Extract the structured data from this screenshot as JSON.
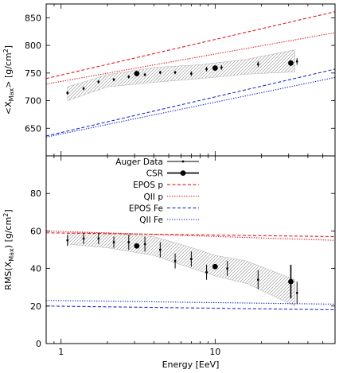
{
  "chart_data": [
    {
      "type": "scatter",
      "panel": "top",
      "title": "",
      "xlabel": "",
      "ylabel": "<X_Max> [g/cm^2]",
      "ylabel_main": "<X",
      "ylabel_sub": "Max",
      "ylabel_rest": "> [g/cm",
      "ylabel_sup": "2",
      "ylabel_end": "]",
      "xscale": "log",
      "xlim": [
        0.8,
        60
      ],
      "ylim": [
        600,
        875
      ],
      "yticks": [
        650,
        700,
        750,
        800,
        850
      ],
      "band": {
        "x": [
          1.1,
          2.0,
          4.0,
          8.0,
          16.0,
          33.0
        ],
        "lower": [
          700,
          725,
          733,
          740,
          748,
          752
        ],
        "upper": [
          725,
          747,
          760,
          765,
          775,
          792
        ]
      },
      "series": [
        {
          "name": "Auger Data",
          "style": "small-points",
          "color": "#000000",
          "points": [
            {
              "x": 1.1,
              "y": 714,
              "yerr": 3
            },
            {
              "x": 1.4,
              "y": 722,
              "yerr": 3
            },
            {
              "x": 1.75,
              "y": 734,
              "yerr": 3
            },
            {
              "x": 2.2,
              "y": 738,
              "yerr": 3
            },
            {
              "x": 2.75,
              "y": 743,
              "yerr": 3
            },
            {
              "x": 3.5,
              "y": 747,
              "yerr": 3
            },
            {
              "x": 4.4,
              "y": 751,
              "yerr": 3
            },
            {
              "x": 5.5,
              "y": 751,
              "yerr": 3
            },
            {
              "x": 7.0,
              "y": 749,
              "yerr": 4
            },
            {
              "x": 8.8,
              "y": 757,
              "yerr": 4
            },
            {
              "x": 11.0,
              "y": 760,
              "yerr": 4
            },
            {
              "x": 19.0,
              "y": 766,
              "yerr": 5
            },
            {
              "x": 34.0,
              "y": 771,
              "yerr": 6
            }
          ]
        },
        {
          "name": "CSR",
          "style": "large-points",
          "color": "#000000",
          "points": [
            {
              "x": 3.1,
              "y": 749,
              "yerr": 2
            },
            {
              "x": 10.0,
              "y": 759,
              "yerr": 3
            },
            {
              "x": 31.0,
              "y": 768,
              "yerr": 5
            }
          ]
        },
        {
          "name": "EPOS p",
          "style": "dashed",
          "color": "#e8191a",
          "x": [
            0.8,
            60
          ],
          "y": [
            740,
            861
          ]
        },
        {
          "name": "QII p",
          "style": "dotted",
          "color": "#e8191a",
          "x": [
            0.8,
            60
          ],
          "y": [
            730,
            823
          ]
        },
        {
          "name": "EPOS Fe",
          "style": "dashed",
          "color": "#1a2ad6",
          "x": [
            0.8,
            60
          ],
          "y": [
            636,
            757
          ]
        },
        {
          "name": "QII Fe",
          "style": "dotted",
          "color": "#1a2ad6",
          "x": [
            0.8,
            60
          ],
          "y": [
            634,
            742
          ]
        }
      ]
    },
    {
      "type": "scatter",
      "panel": "bottom",
      "title": "",
      "xlabel": "Energy [EeV]",
      "ylabel": "RMS(X_Max) [g/cm^2]",
      "ylabel_main": "RMS(X",
      "ylabel_sub": "Max",
      "ylabel_rest": ") [g/cm",
      "ylabel_sup": "2",
      "ylabel_end": "]",
      "xscale": "log",
      "xlim": [
        0.8,
        60
      ],
      "xticks": [
        1,
        10
      ],
      "xtick_labels": [
        "1",
        "10"
      ],
      "ylim": [
        0,
        100
      ],
      "yticks": [
        0,
        20,
        40,
        60,
        80
      ],
      "band": {
        "x": [
          1.1,
          2.0,
          4.0,
          6.5,
          10.0,
          16.0,
          33.0
        ],
        "lower": [
          53,
          51,
          47,
          41,
          36,
          32,
          20
        ],
        "upper": [
          59,
          59,
          57,
          52,
          47,
          44,
          34
        ]
      },
      "series": [
        {
          "name": "Auger Data",
          "style": "small-points",
          "color": "#000000",
          "points": [
            {
              "x": 1.1,
              "y": 55,
              "yerr": 3
            },
            {
              "x": 1.4,
              "y": 56,
              "yerr": 3
            },
            {
              "x": 1.75,
              "y": 56,
              "yerr": 3
            },
            {
              "x": 2.2,
              "y": 54,
              "yerr": 3
            },
            {
              "x": 2.75,
              "y": 54,
              "yerr": 4
            },
            {
              "x": 3.5,
              "y": 53,
              "yerr": 4
            },
            {
              "x": 4.4,
              "y": 50,
              "yerr": 4
            },
            {
              "x": 5.5,
              "y": 44,
              "yerr": 4
            },
            {
              "x": 7.0,
              "y": 45,
              "yerr": 4
            },
            {
              "x": 8.8,
              "y": 38,
              "yerr": 4
            },
            {
              "x": 12.0,
              "y": 40,
              "yerr": 4
            },
            {
              "x": 19.0,
              "y": 34,
              "yerr": 5
            },
            {
              "x": 34.0,
              "y": 27,
              "yerr": 6
            }
          ]
        },
        {
          "name": "CSR",
          "style": "large-points",
          "color": "#000000",
          "points": [
            {
              "x": 3.1,
              "y": 52,
              "yerr": 1
            },
            {
              "x": 10.0,
              "y": 41,
              "yerr": 1
            },
            {
              "x": 31.0,
              "y": 33,
              "yerr": 9
            }
          ]
        },
        {
          "name": "EPOS p",
          "style": "dashed",
          "color": "#e8191a",
          "x": [
            0.8,
            60
          ],
          "y": [
            59,
            57
          ]
        },
        {
          "name": "QII p",
          "style": "dotted",
          "color": "#e8191a",
          "x": [
            0.8,
            60
          ],
          "y": [
            60,
            55
          ]
        },
        {
          "name": "EPOS Fe",
          "style": "dashed",
          "color": "#1a2ad6",
          "x": [
            0.8,
            60
          ],
          "y": [
            20,
            18
          ]
        },
        {
          "name": "QII Fe",
          "style": "dotted",
          "color": "#1a2ad6",
          "x": [
            0.8,
            60
          ],
          "y": [
            23,
            21
          ]
        }
      ]
    }
  ],
  "legend": {
    "placement": "top-left of bottom panel",
    "entries": [
      {
        "label": "Auger Data",
        "style": "small-points",
        "color": "#000000"
      },
      {
        "label": "CSR",
        "style": "large-points",
        "color": "#000000"
      },
      {
        "label": "EPOS p",
        "style": "dashed",
        "color": "#e8191a"
      },
      {
        "label": "QII p",
        "style": "dotted",
        "color": "#e8191a"
      },
      {
        "label": "EPOS Fe",
        "style": "dashed",
        "color": "#1a2ad6"
      },
      {
        "label": "QII Fe",
        "style": "dotted",
        "color": "#1a2ad6"
      }
    ]
  }
}
